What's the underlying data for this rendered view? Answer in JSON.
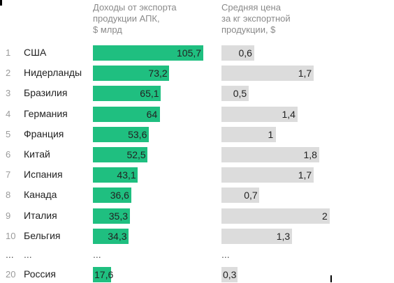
{
  "chart_data": {
    "type": "bar",
    "header_revenue": "Доходы от экспорта\nпродукции АПК,\n$ млрд",
    "header_price": "Средняя цена\nза кг экспортной\nпродукции, $",
    "rows": [
      {
        "rank": "1",
        "country": "США",
        "revenue": 105.7,
        "revenue_label": "105,7",
        "price": 0.6,
        "price_label": "0,6"
      },
      {
        "rank": "2",
        "country": "Нидерланды",
        "revenue": 73.2,
        "revenue_label": "73,2",
        "price": 1.7,
        "price_label": "1,7"
      },
      {
        "rank": "3",
        "country": "Бразилия",
        "revenue": 65.1,
        "revenue_label": "65,1",
        "price": 0.5,
        "price_label": "0,5"
      },
      {
        "rank": "4",
        "country": "Германия",
        "revenue": 64,
        "revenue_label": "64",
        "price": 1.4,
        "price_label": "1,4"
      },
      {
        "rank": "5",
        "country": "Франция",
        "revenue": 53.6,
        "revenue_label": "53,6",
        "price": 1,
        "price_label": "1"
      },
      {
        "rank": "6",
        "country": "Китай",
        "revenue": 52.5,
        "revenue_label": "52,5",
        "price": 1.8,
        "price_label": "1,8"
      },
      {
        "rank": "7",
        "country": "Испания",
        "revenue": 43.1,
        "revenue_label": "43,1",
        "price": 1.7,
        "price_label": "1,7"
      },
      {
        "rank": "8",
        "country": "Канада",
        "revenue": 36.6,
        "revenue_label": "36,6",
        "price": 0.7,
        "price_label": "0,7"
      },
      {
        "rank": "9",
        "country": "Италия",
        "revenue": 35.3,
        "revenue_label": "35,3",
        "price": 2,
        "price_label": "2"
      },
      {
        "rank": "10",
        "country": "Бельгия",
        "revenue": 34.3,
        "revenue_label": "34,3",
        "price": 1.3,
        "price_label": "1,3"
      }
    ],
    "ellipsis": "...",
    "russia": {
      "rank": "20",
      "country": "Россия",
      "revenue": 17.6,
      "revenue_label": "17,6",
      "price": 0.3,
      "price_label": "0,3"
    },
    "colors": {
      "revenue_bar": "#1fbf80",
      "price_bar": "#dcdcdc"
    }
  }
}
